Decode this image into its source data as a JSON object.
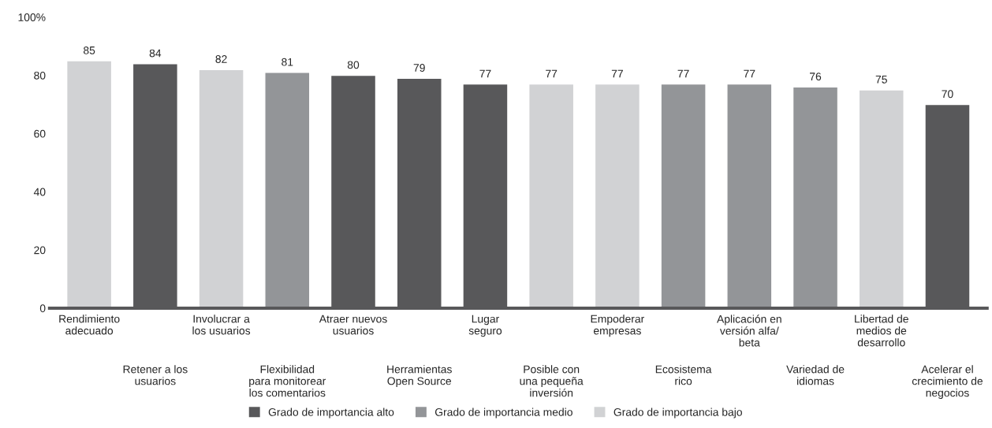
{
  "chart_data": {
    "type": "bar",
    "categories": [
      "Rendimiento\nadecuado",
      "Retener a los\nusuarios",
      "Involucrar a\nlos usuarios",
      "Flexibilidad\npara monitorear\nlos comentarios",
      "Atraer nuevos\nusuarios",
      "Herramientas\nOpen Source",
      "Lugar\nseguro",
      "Posible con\nuna pequeña\ninversión",
      "Empoderar\nempresas",
      "Ecosistema\nrico",
      "Aplicación en\nversión alfa/\nbeta",
      "Variedad de\nidiomas",
      "Libertad de\nmedios de\ndesarrollo",
      "Acelerar el\ncrecimiento de\nnegocios"
    ],
    "series": [
      {
        "name": "Grado de importancia alto",
        "color": "#58585a",
        "values": [
          null,
          84,
          null,
          null,
          80,
          79,
          77,
          null,
          null,
          null,
          null,
          null,
          null,
          70
        ]
      },
      {
        "name": "Grado de importancia medio",
        "color": "#939598",
        "values": [
          null,
          null,
          null,
          81,
          null,
          null,
          null,
          null,
          null,
          77,
          77,
          76,
          null,
          null
        ]
      },
      {
        "name": "Grado de importancia bajo",
        "color": "#d1d2d4",
        "values": [
          85,
          null,
          82,
          null,
          null,
          null,
          null,
          77,
          77,
          null,
          null,
          null,
          75,
          null
        ]
      }
    ],
    "ylim": [
      0,
      100
    ],
    "yticks": [
      0,
      20,
      40,
      60,
      80,
      {
        "value": 100,
        "label": "100%"
      }
    ],
    "data_labels": true,
    "legend": "bottom",
    "grid": false
  }
}
